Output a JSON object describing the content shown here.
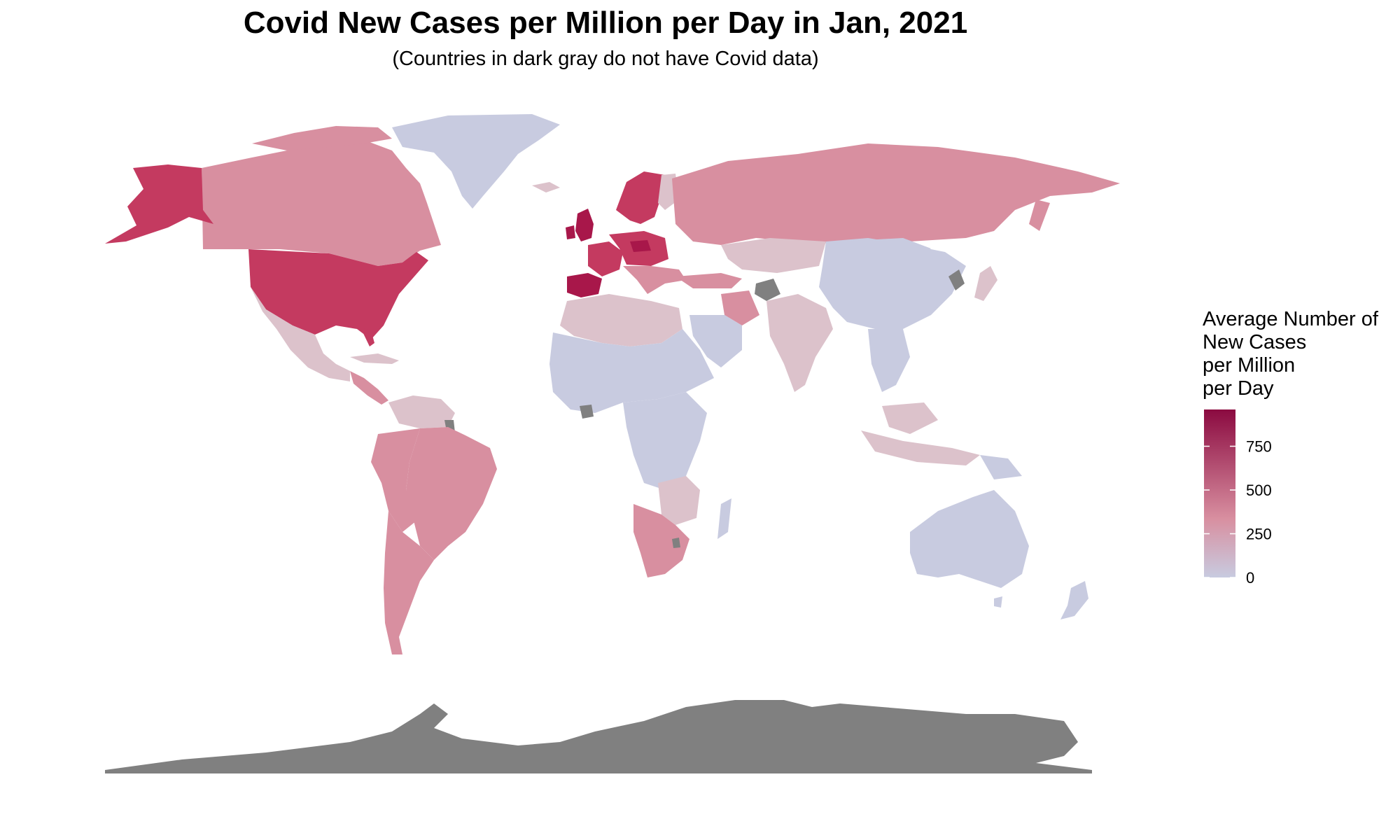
{
  "title": "Covid New Cases per Million per Day in Jan, 2021",
  "subtitle": "(Countries in dark gray do not have Covid data)",
  "legend": {
    "title_lines": [
      "Average Number of",
      "New Cases",
      "per Million",
      "per Day"
    ],
    "ticks": [
      {
        "value": 0,
        "label": "0"
      },
      {
        "value": 250,
        "label": "250"
      },
      {
        "value": 500,
        "label": "500"
      },
      {
        "value": 750,
        "label": "750"
      }
    ],
    "range": [
      0,
      960
    ],
    "color_low": "#c8cbe0",
    "color_mid": "#d88fa0",
    "color_high": "#8b0a40"
  },
  "colors": {
    "no_data": "#808080",
    "low": "#c8cbe0",
    "pale": "#dcc2cb",
    "medium": "#d88fa0",
    "high": "#c43a60",
    "very_high": "#a8174a"
  }
}
